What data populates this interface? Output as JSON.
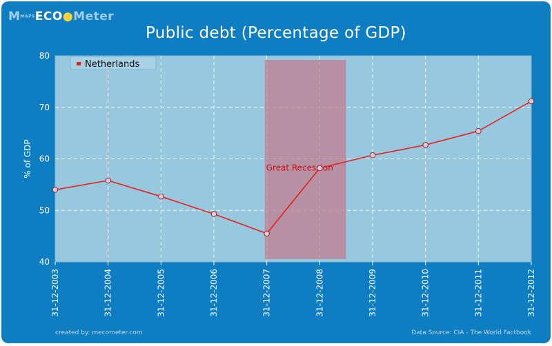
{
  "brand": {
    "logo_prefix": "M",
    "logo_eco": "ECO",
    "logo_suffix": "Meter",
    "logo_tiny": "MAPS"
  },
  "footer": {
    "created_by": "created by: mecometer.com",
    "source": "Data Source: CIA - The World Factbook"
  },
  "colors": {
    "background": "#0f7dc2",
    "plot": "#98c8de",
    "line": "#e81e1e",
    "recession": "#c47c8c"
  },
  "chart_data": {
    "type": "line",
    "title": "Public debt (Percentage of GDP)",
    "xlabel": "",
    "ylabel": "% of GDP",
    "categories": [
      "31-12-2003",
      "31-12-2004",
      "31-12-2005",
      "31-12-2006",
      "31-12-2007",
      "31-12-2008",
      "31-12-2009",
      "31-12-2010",
      "31-12-2011",
      "31-12-2012"
    ],
    "series": [
      {
        "name": "Netherlands",
        "values": [
          54.0,
          55.8,
          52.7,
          49.3,
          45.5,
          58.2,
          60.7,
          62.7,
          65.4,
          71.2
        ]
      }
    ],
    "ylim": [
      40,
      80
    ],
    "yticks": [
      40,
      50,
      60,
      70,
      80
    ],
    "grid": true,
    "legend": "top-left",
    "annotation": {
      "label": "Great Recession",
      "from_category": "31-12-2007",
      "to_category": "31-12-2008"
    }
  }
}
